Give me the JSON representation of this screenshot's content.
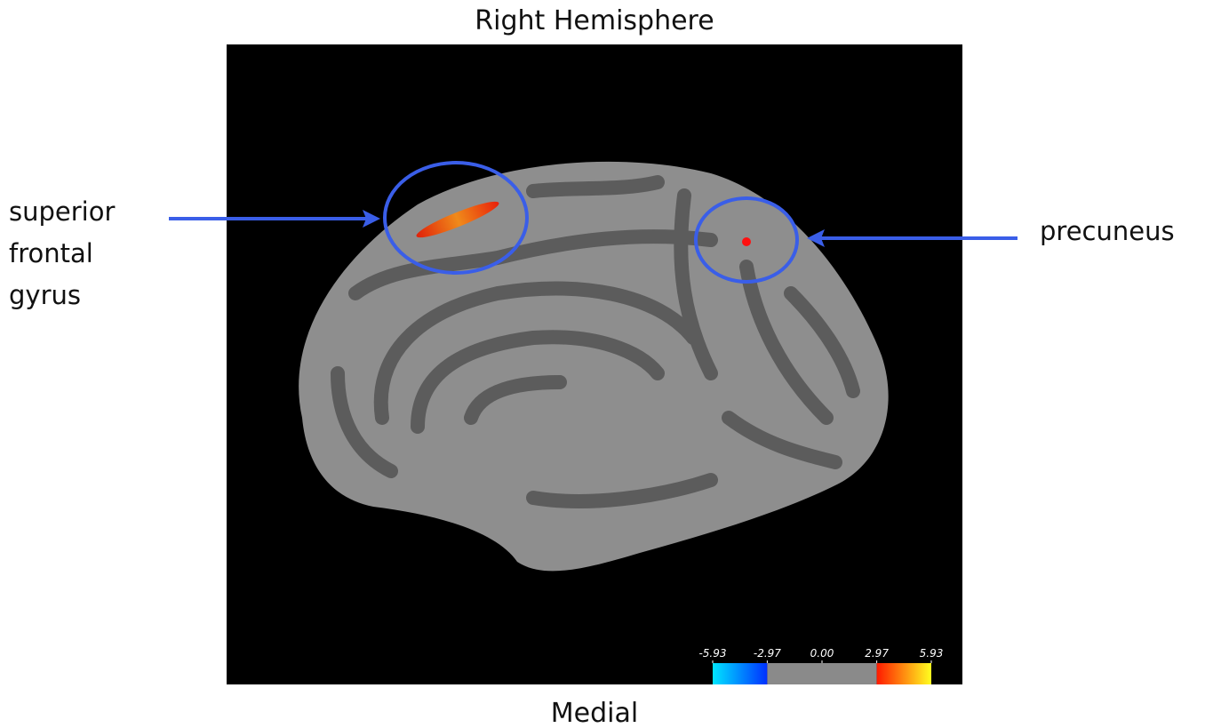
{
  "header": {
    "title": "Right Hemisphere"
  },
  "footer": {
    "label": "Medial"
  },
  "annotations": [
    {
      "lines": [
        "superior",
        "frontal",
        "gyrus"
      ]
    },
    {
      "lines": [
        "precuneus"
      ]
    }
  ],
  "colorbar": {
    "range": [
      -5.93,
      5.93
    ],
    "threshold": 2.97,
    "ticks": [
      {
        "value": -5.93,
        "label": "-5.93"
      },
      {
        "value": -2.97,
        "label": "-2.97"
      },
      {
        "value": 0,
        "label": "0.00"
      },
      {
        "value": 2.97,
        "label": "2.97"
      },
      {
        "value": 5.93,
        "label": "5.93"
      }
    ]
  }
}
